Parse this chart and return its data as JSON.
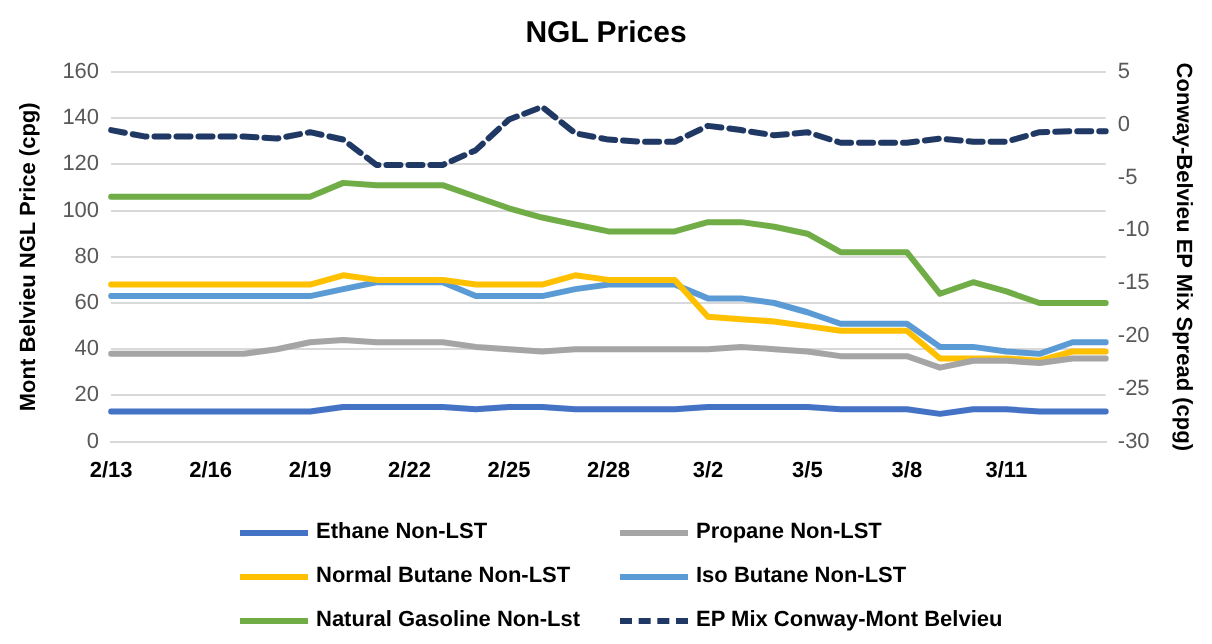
{
  "chart_data": {
    "type": "line",
    "title": "NGL Prices",
    "ylabel": "Mont Belvieu NGL Price (cpg)",
    "y2label": "Conway-Belvieu EP Mix Spread (cpg)",
    "categories": [
      "2/13",
      null,
      null,
      "2/16",
      null,
      null,
      "2/19",
      null,
      null,
      "2/22",
      null,
      null,
      "2/25",
      null,
      null,
      "2/28",
      null,
      null,
      "3/2",
      null,
      null,
      "3/5",
      null,
      null,
      "3/8",
      null,
      null,
      "3/11",
      null,
      null,
      null
    ],
    "series": [
      {
        "name": "Ethane Non-LST",
        "color": "#4472c4",
        "values": [
          13,
          13,
          13,
          13,
          13,
          13,
          13,
          15,
          15,
          15,
          15,
          14,
          15,
          15,
          14,
          14,
          14,
          14,
          15,
          15,
          15,
          15,
          14,
          14,
          14,
          12,
          14,
          14,
          13,
          13,
          13
        ]
      },
      {
        "name": "Propane Non-LST",
        "color": "#a5a5a5",
        "values": [
          38,
          38,
          38,
          38,
          38,
          40,
          43,
          44,
          43,
          43,
          43,
          41,
          40,
          39,
          40,
          40,
          40,
          40,
          40,
          41,
          40,
          39,
          37,
          37,
          37,
          32,
          35,
          35,
          34,
          36,
          36
        ]
      },
      {
        "name": "Normal Butane Non-LST",
        "color": "#ffc000",
        "values": [
          68,
          68,
          68,
          68,
          68,
          68,
          68,
          72,
          70,
          70,
          70,
          68,
          68,
          68,
          72,
          70,
          70,
          70,
          54,
          53,
          52,
          50,
          48,
          48,
          48,
          36,
          36,
          36,
          35,
          39,
          39
        ]
      },
      {
        "name": "Iso Butane Non-LST",
        "color": "#5b9bd5",
        "values": [
          63,
          63,
          63,
          63,
          63,
          63,
          63,
          66,
          69,
          69,
          69,
          63,
          63,
          63,
          66,
          68,
          68,
          68,
          62,
          62,
          60,
          56,
          51,
          51,
          51,
          41,
          41,
          39,
          38,
          43,
          43
        ]
      },
      {
        "name": "Natural Gasoline Non-Lst",
        "color": "#70ad47",
        "values": [
          106,
          106,
          106,
          106,
          106,
          106,
          106,
          112,
          111,
          111,
          111,
          106,
          101,
          97,
          94,
          91,
          91,
          91,
          95,
          95,
          93,
          90,
          82,
          82,
          82,
          64,
          69,
          65,
          60,
          60,
          60
        ]
      },
      {
        "name": "EP Mix Conway-Mont Belvieu",
        "color": "#203864",
        "axis": "y2",
        "line_style": "dashed",
        "values": [
          -0.5,
          -1.1,
          -1.1,
          -1.1,
          -1.1,
          -1.3,
          -0.7,
          -1.4,
          -3.8,
          -3.8,
          -3.8,
          -2.4,
          0.5,
          1.7,
          -0.8,
          -1.4,
          -1.6,
          -1.6,
          -0.1,
          -0.5,
          -1.0,
          -0.7,
          -1.7,
          -1.7,
          -1.7,
          -1.3,
          -1.6,
          -1.6,
          -0.7,
          -0.6,
          -0.6
        ]
      }
    ],
    "ylim": [
      0,
      160
    ],
    "yticks": [
      0,
      20,
      40,
      60,
      80,
      100,
      120,
      140,
      160
    ],
    "y2lim": [
      -30,
      5
    ],
    "y2ticks": [
      -30,
      -25,
      -20,
      -15,
      -10,
      -5,
      0,
      5
    ],
    "grid": "y",
    "legend": "bottom",
    "marker": "none",
    "line_style": "solid"
  }
}
